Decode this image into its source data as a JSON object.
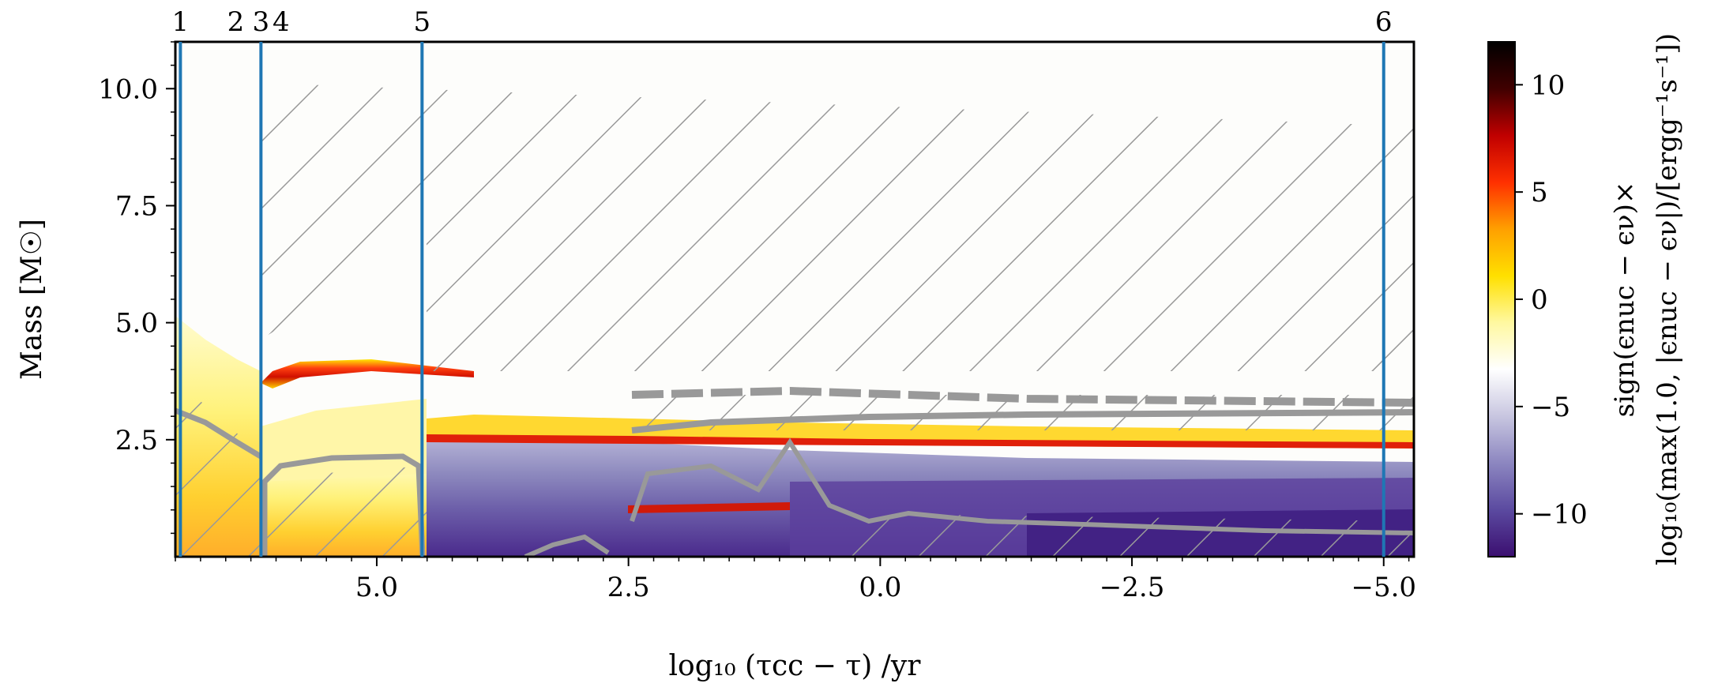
{
  "chart_data": {
    "type": "heatmap",
    "title": "",
    "xlabel": "log₁₀ (τcc − τ) /yr",
    "ylabel": "Mass [M☉]",
    "x_reversed": true,
    "xlim": [
      7.0,
      -5.3
    ],
    "ylim": [
      0.0,
      11.0
    ],
    "x_ticks": [
      5.0,
      2.5,
      0.0,
      -2.5,
      -5.0
    ],
    "x_tick_labels": [
      "5.0",
      "2.5",
      "0.0",
      "−2.5",
      "−5.0"
    ],
    "y_ticks": [
      2.5,
      5.0,
      7.5,
      10.0
    ],
    "y_tick_labels": [
      "2.5",
      "5.0",
      "7.5",
      "10.0"
    ],
    "markers": [
      {
        "label": "1",
        "x": 6.95,
        "line": true
      },
      {
        "label": "2",
        "x": 6.4,
        "line": false
      },
      {
        "label": "3",
        "x": 6.15,
        "line": true
      },
      {
        "label": "4",
        "x": 5.95,
        "line": false
      },
      {
        "label": "5",
        "x": 4.55,
        "line": true
      },
      {
        "label": "6",
        "x": -5.0,
        "line": true
      }
    ],
    "colorbar": {
      "label_line1": "sign(ϵnuc − ϵν)×",
      "label_line2": "log₁₀(max(1.0, |ϵnuc − ϵν|)/[ergg⁻¹s⁻¹])",
      "range": [
        -12,
        12
      ],
      "ticks": [
        10,
        5,
        0,
        -5,
        -10
      ],
      "tick_labels": [
        "10",
        "5",
        "0",
        "−5",
        "−10"
      ],
      "colormap": "CMRmap-diverging",
      "stops": [
        "#3b0f70",
        "#5b4aa0",
        "#8c86c0",
        "#c8c6e0",
        "#ffffff",
        "#fff8a0",
        "#ffe000",
        "#ffa000",
        "#ff3000",
        "#c00000",
        "#400000",
        "#000000"
      ]
    },
    "regions": {
      "convective_hatch_color": "#999999",
      "marker_line_color": "#1f77b4"
    }
  }
}
